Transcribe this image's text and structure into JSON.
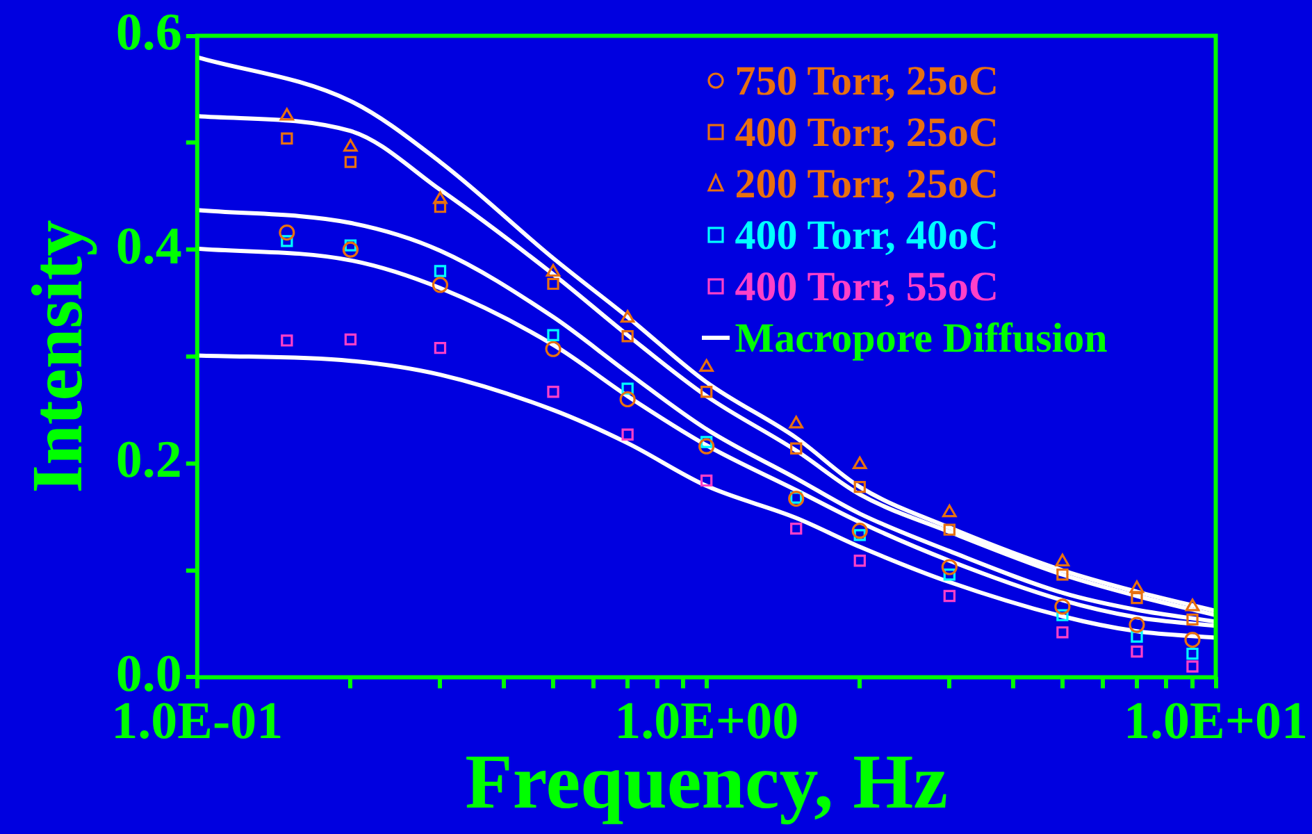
{
  "chart_data": {
    "type": "scatter",
    "xlabel": "Frequency, Hz",
    "ylabel": "Intensity",
    "log": "x",
    "xlim": [
      0.1,
      10
    ],
    "ylim": [
      0,
      0.6
    ],
    "xticks": [
      {
        "value": 0.1,
        "label": "1.0E-01"
      },
      {
        "value": 0.2,
        "label": null
      },
      {
        "value": 0.3,
        "label": null
      },
      {
        "value": 0.4,
        "label": null
      },
      {
        "value": 0.5,
        "label": null
      },
      {
        "value": 0.6,
        "label": null
      },
      {
        "value": 0.7,
        "label": null
      },
      {
        "value": 0.8,
        "label": null
      },
      {
        "value": 0.9,
        "label": null
      },
      {
        "value": 1,
        "label": "1.0E+00"
      },
      {
        "value": 2,
        "label": null
      },
      {
        "value": 3,
        "label": null
      },
      {
        "value": 4,
        "label": null
      },
      {
        "value": 5,
        "label": null
      },
      {
        "value": 6,
        "label": null
      },
      {
        "value": 7,
        "label": null
      },
      {
        "value": 8,
        "label": null
      },
      {
        "value": 9,
        "label": null
      },
      {
        "value": 10,
        "label": "1.0E+01"
      }
    ],
    "yticks": [
      {
        "value": 0,
        "label": "0.0"
      },
      {
        "value": 0.1,
        "label": null
      },
      {
        "value": 0.2,
        "label": "0.2"
      },
      {
        "value": 0.3,
        "label": null
      },
      {
        "value": 0.4,
        "label": "0.4"
      },
      {
        "value": 0.5,
        "label": null
      },
      {
        "value": 0.6,
        "label": "0.6"
      }
    ],
    "legend": "top right",
    "grid": false,
    "x": [
      0.15,
      0.2,
      0.3,
      0.5,
      0.7,
      1,
      1.5,
      2,
      3,
      5,
      7,
      9
    ],
    "series": [
      {
        "name": "750 Torr, 25oC",
        "color": "#e87010",
        "marker": "circle",
        "values": [
          0.416,
          0.4,
          0.367,
          0.307,
          0.26,
          0.216,
          0.167,
          0.137,
          0.103,
          0.066,
          0.049,
          0.035
        ]
      },
      {
        "name": "400 Torr, 25oC",
        "color": "#e87010",
        "marker": "square",
        "values": [
          0.504,
          0.482,
          0.44,
          0.368,
          0.319,
          0.267,
          0.214,
          0.178,
          0.138,
          0.096,
          0.074,
          0.054
        ]
      },
      {
        "name": "200 Torr, 25oC",
        "color": "#e87010",
        "marker": "triangle",
        "values": [
          0.525,
          0.496,
          0.447,
          0.379,
          0.336,
          0.29,
          0.237,
          0.199,
          0.154,
          0.108,
          0.083,
          0.066
        ]
      },
      {
        "name": "400 Torr, 40oC",
        "color": "#00ffff",
        "marker": "square",
        "values": [
          0.408,
          0.404,
          0.38,
          0.32,
          0.27,
          0.22,
          0.168,
          0.133,
          0.096,
          0.058,
          0.038,
          0.022
        ]
      },
      {
        "name": "400 Torr, 55oC",
        "color": "#ff40c8",
        "marker": "square",
        "values": [
          0.315,
          0.316,
          0.308,
          0.267,
          0.227,
          0.184,
          0.139,
          0.109,
          0.076,
          0.042,
          0.024,
          0.01
        ]
      },
      {
        "name": "Macropore Diffusion",
        "type": "line",
        "color": "#ffffff",
        "marker": "none",
        "x": [
          0.1,
          0.2,
          0.3,
          0.5,
          0.7,
          1,
          1.5,
          2,
          3,
          5,
          7,
          10
        ],
        "values": [
          0.58,
          0.539,
          0.482,
          0.392,
          0.337,
          0.276,
          0.224,
          0.178,
          0.14,
          0.1,
          0.08,
          0.062
        ]
      },
      {
        "type": "line",
        "color": "#ffffff",
        "marker": "none",
        "x": [
          0.1,
          0.2,
          0.3,
          0.5,
          0.7,
          1,
          1.5,
          2,
          3,
          5,
          7,
          10
        ],
        "values": [
          0.525,
          0.511,
          0.456,
          0.377,
          0.32,
          0.263,
          0.212,
          0.171,
          0.136,
          0.096,
          0.076,
          0.058
        ]
      },
      {
        "type": "line",
        "color": "#ffffff",
        "marker": "none",
        "x": [
          0.1,
          0.2,
          0.3,
          0.5,
          0.7,
          1,
          1.5,
          2,
          3,
          5,
          7,
          10
        ],
        "values": [
          0.437,
          0.425,
          0.399,
          0.337,
          0.285,
          0.232,
          0.186,
          0.153,
          0.118,
          0.079,
          0.063,
          0.052
        ]
      },
      {
        "type": "line",
        "color": "#ffffff",
        "marker": "none",
        "x": [
          0.1,
          0.2,
          0.3,
          0.5,
          0.7,
          1,
          1.5,
          2,
          3,
          5,
          7,
          10
        ],
        "values": [
          0.401,
          0.39,
          0.364,
          0.311,
          0.263,
          0.217,
          0.175,
          0.145,
          0.109,
          0.072,
          0.056,
          0.048
        ]
      },
      {
        "type": "line",
        "color": "#ffffff",
        "marker": "none",
        "x": [
          0.1,
          0.2,
          0.3,
          0.5,
          0.7,
          1,
          1.5,
          2,
          3,
          5,
          7,
          10
        ],
        "values": [
          0.301,
          0.296,
          0.283,
          0.25,
          0.219,
          0.179,
          0.149,
          0.122,
          0.089,
          0.057,
          0.043,
          0.037
        ]
      }
    ]
  }
}
